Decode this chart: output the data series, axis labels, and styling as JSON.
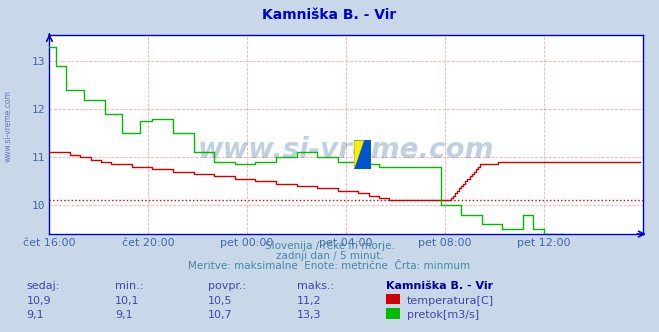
{
  "title": "Kamniška B. - Vir",
  "title_color": "#0000cc",
  "bg_color": "#c8d8e8",
  "plot_bg_color": "#ffffff",
  "grid_color": "#ffaaaa",
  "xlabel_color": "#4466aa",
  "ylabel_color": "#4466aa",
  "watermark": "www.si-vreme.com",
  "watermark_color": "#336699",
  "watermark_alpha": 0.3,
  "subtitle1": "Slovenija / reke in morje.",
  "subtitle2": "zadnji dan / 5 minut.",
  "subtitle3": "Meritve: maksimalne  Enote: metrične  Črta: minmum",
  "subtitle_color": "#4488aa",
  "yticks": [
    10,
    11,
    12,
    13
  ],
  "ylim_bottom": 9.4,
  "ylim_top": 13.55,
  "xtick_positions": [
    0,
    48,
    96,
    144,
    192,
    240
  ],
  "xtick_labels": [
    "čet 16:00",
    "čet 20:00",
    "pet 00:00",
    "pet 04:00",
    "pet 08:00",
    "pet 12:00"
  ],
  "temp_color": "#cc0000",
  "flow_color": "#00bb00",
  "hline_value": 10.1,
  "hline_color": "#cc0000",
  "axis_color": "#0000cc",
  "table_header": [
    "sedaj:",
    "min.:",
    "povpr.:",
    "maks.:",
    "Kamniška B. - Vir"
  ],
  "table_row1": [
    "10,9",
    "10,1",
    "10,5",
    "11,2"
  ],
  "table_row2": [
    "9,1",
    "9,1",
    "10,7",
    "13,3"
  ],
  "table_label1": "temperatura[C]",
  "table_label2": "pretok[m3/s]",
  "table_color": "#4444aa",
  "table_bold_color": "#000099",
  "legend_rect1_color": "#cc0000",
  "legend_rect2_color": "#00bb00",
  "side_label": "www.si-vreme.com",
  "side_label_color": "#4466aa",
  "temp_data": [
    11.1,
    11.1,
    11.1,
    11.1,
    11.1,
    11.1,
    11.1,
    11.1,
    11.1,
    11.1,
    11.05,
    11.05,
    11.05,
    11.05,
    11.05,
    11.0,
    11.0,
    11.0,
    11.0,
    11.0,
    10.95,
    10.95,
    10.95,
    10.95,
    10.95,
    10.9,
    10.9,
    10.9,
    10.9,
    10.9,
    10.85,
    10.85,
    10.85,
    10.85,
    10.85,
    10.85,
    10.85,
    10.85,
    10.85,
    10.85,
    10.8,
    10.8,
    10.8,
    10.8,
    10.8,
    10.8,
    10.8,
    10.8,
    10.8,
    10.8,
    10.75,
    10.75,
    10.75,
    10.75,
    10.75,
    10.75,
    10.75,
    10.75,
    10.75,
    10.75,
    10.7,
    10.7,
    10.7,
    10.7,
    10.7,
    10.7,
    10.7,
    10.7,
    10.7,
    10.7,
    10.65,
    10.65,
    10.65,
    10.65,
    10.65,
    10.65,
    10.65,
    10.65,
    10.65,
    10.65,
    10.6,
    10.6,
    10.6,
    10.6,
    10.6,
    10.6,
    10.6,
    10.6,
    10.6,
    10.6,
    10.55,
    10.55,
    10.55,
    10.55,
    10.55,
    10.55,
    10.55,
    10.55,
    10.55,
    10.55,
    10.5,
    10.5,
    10.5,
    10.5,
    10.5,
    10.5,
    10.5,
    10.5,
    10.5,
    10.5,
    10.45,
    10.45,
    10.45,
    10.45,
    10.45,
    10.45,
    10.45,
    10.45,
    10.45,
    10.45,
    10.4,
    10.4,
    10.4,
    10.4,
    10.4,
    10.4,
    10.4,
    10.4,
    10.4,
    10.4,
    10.35,
    10.35,
    10.35,
    10.35,
    10.35,
    10.35,
    10.35,
    10.35,
    10.35,
    10.35,
    10.3,
    10.3,
    10.3,
    10.3,
    10.3,
    10.3,
    10.3,
    10.3,
    10.3,
    10.3,
    10.25,
    10.25,
    10.25,
    10.25,
    10.25,
    10.2,
    10.2,
    10.2,
    10.2,
    10.2,
    10.15,
    10.15,
    10.15,
    10.15,
    10.15,
    10.1,
    10.1,
    10.1,
    10.1,
    10.1,
    10.1,
    10.1,
    10.1,
    10.1,
    10.1,
    10.1,
    10.1,
    10.1,
    10.1,
    10.1,
    10.1,
    10.1,
    10.1,
    10.1,
    10.1,
    10.1,
    10.1,
    10.1,
    10.1,
    10.1,
    10.1,
    10.1,
    10.1,
    10.1,
    10.1,
    10.15,
    10.2,
    10.25,
    10.3,
    10.35,
    10.4,
    10.45,
    10.5,
    10.55,
    10.6,
    10.65,
    10.7,
    10.75,
    10.8,
    10.85,
    10.85,
    10.85,
    10.85,
    10.85,
    10.85,
    10.85,
    10.85,
    10.85,
    10.9,
    10.9,
    10.9,
    10.9,
    10.9,
    10.9,
    10.9,
    10.9,
    10.9,
    10.9,
    10.9,
    10.9,
    10.9,
    10.9,
    10.9,
    10.9,
    10.9,
    10.9,
    10.9,
    10.9,
    10.9,
    10.9,
    10.9,
    10.9,
    10.9,
    10.9,
    10.9,
    10.9,
    10.9,
    10.9,
    10.9,
    10.9,
    10.9,
    10.9,
    10.9,
    10.9,
    10.9,
    10.9,
    10.9,
    10.9,
    10.9,
    10.9,
    10.9,
    10.9,
    10.9,
    10.9,
    10.9,
    10.9,
    10.9,
    10.9,
    10.9,
    10.9,
    10.9,
    10.9,
    10.9,
    10.9,
    10.9,
    10.9,
    10.9,
    10.9,
    10.9,
    10.9,
    10.9,
    10.9,
    10.9,
    10.9,
    10.9,
    10.9,
    10.9,
    10.9
  ],
  "flow_data": [
    13.3,
    13.3,
    13.3,
    12.9,
    12.9,
    12.9,
    12.9,
    12.9,
    12.4,
    12.4,
    12.4,
    12.4,
    12.4,
    12.4,
    12.4,
    12.4,
    12.4,
    12.2,
    12.2,
    12.2,
    12.2,
    12.2,
    12.2,
    12.2,
    12.2,
    12.2,
    12.2,
    11.9,
    11.9,
    11.9,
    11.9,
    11.9,
    11.9,
    11.9,
    11.9,
    11.5,
    11.5,
    11.5,
    11.5,
    11.5,
    11.5,
    11.5,
    11.5,
    11.5,
    11.75,
    11.75,
    11.75,
    11.75,
    11.75,
    11.75,
    11.8,
    11.8,
    11.8,
    11.8,
    11.8,
    11.8,
    11.8,
    11.8,
    11.8,
    11.8,
    11.5,
    11.5,
    11.5,
    11.5,
    11.5,
    11.5,
    11.5,
    11.5,
    11.5,
    11.5,
    11.1,
    11.1,
    11.1,
    11.1,
    11.1,
    11.1,
    11.1,
    11.1,
    11.1,
    11.1,
    10.9,
    10.9,
    10.9,
    10.9,
    10.9,
    10.9,
    10.9,
    10.9,
    10.9,
    10.9,
    10.85,
    10.85,
    10.85,
    10.85,
    10.85,
    10.85,
    10.85,
    10.85,
    10.85,
    10.85,
    10.9,
    10.9,
    10.9,
    10.9,
    10.9,
    10.9,
    10.9,
    10.9,
    10.9,
    10.9,
    11.0,
    11.0,
    11.0,
    11.0,
    11.0,
    11.0,
    11.0,
    11.0,
    11.0,
    11.0,
    11.1,
    11.1,
    11.1,
    11.1,
    11.1,
    11.1,
    11.1,
    11.1,
    11.1,
    11.1,
    11.0,
    11.0,
    11.0,
    11.0,
    11.0,
    11.0,
    11.0,
    11.0,
    11.0,
    11.0,
    10.9,
    10.9,
    10.9,
    10.9,
    10.9,
    10.9,
    10.9,
    10.9,
    10.9,
    10.9,
    10.85,
    10.85,
    10.85,
    10.85,
    10.85,
    10.85,
    10.85,
    10.85,
    10.85,
    10.85,
    10.8,
    10.8,
    10.8,
    10.8,
    10.8,
    10.8,
    10.8,
    10.8,
    10.8,
    10.8,
    10.8,
    10.8,
    10.8,
    10.8,
    10.8,
    10.8,
    10.8,
    10.8,
    10.8,
    10.8,
    10.8,
    10.8,
    10.8,
    10.8,
    10.8,
    10.8,
    10.8,
    10.8,
    10.8,
    10.8,
    10.0,
    10.0,
    10.0,
    10.0,
    10.0,
    10.0,
    10.0,
    10.0,
    10.0,
    10.0,
    9.8,
    9.8,
    9.8,
    9.8,
    9.8,
    9.8,
    9.8,
    9.8,
    9.8,
    9.8,
    9.6,
    9.6,
    9.6,
    9.6,
    9.6,
    9.6,
    9.6,
    9.6,
    9.6,
    9.6,
    9.5,
    9.5,
    9.5,
    9.5,
    9.5,
    9.5,
    9.5,
    9.5,
    9.5,
    9.5,
    9.8,
    9.8,
    9.8,
    9.8,
    9.8,
    9.5,
    9.5,
    9.5,
    9.5,
    9.5,
    9.4,
    9.4,
    9.4,
    9.4,
    9.4,
    9.4,
    9.4,
    9.4,
    9.4,
    9.4,
    9.3,
    9.3,
    9.3,
    9.3,
    9.3,
    9.3,
    9.3,
    9.3,
    9.3,
    9.3,
    9.25,
    9.25,
    9.25,
    9.25,
    9.25,
    9.25,
    9.25,
    9.25,
    9.25,
    9.25,
    9.2,
    9.2,
    9.2,
    9.2,
    9.2,
    9.2,
    9.2,
    9.2,
    9.2,
    9.2,
    9.1,
    9.1,
    9.1,
    9.1,
    9.1,
    9.1,
    9.1,
    9.1
  ]
}
